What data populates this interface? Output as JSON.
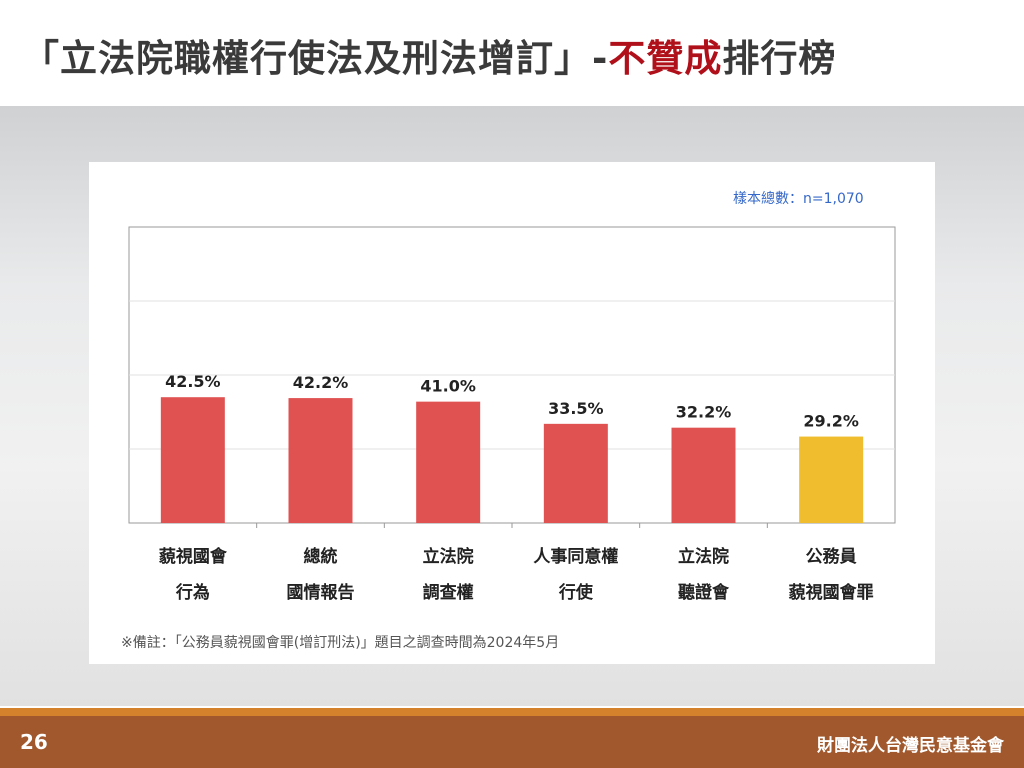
{
  "title": {
    "prefix": "「立法院職權行使法及刑法增訂」-",
    "highlight": "不贊成",
    "suffix": "排行榜"
  },
  "sample_label": "樣本總數：n=1,070",
  "note": "※備註：「公務員藐視國會罪(增訂刑法)」題目之調查時間為2024年5月",
  "footer": {
    "page_number": "26",
    "organization": "財團法人台灣民意基金會"
  },
  "colors": {
    "bar_default": "#e05151",
    "bar_highlight": "#f0bd2e",
    "title_highlight": "#b0101a",
    "footer": "#a0582c",
    "footer_stripe": "#d4822c"
  },
  "chart_data": {
    "type": "bar",
    "categories": [
      [
        "藐視國會",
        "行為"
      ],
      [
        "總統",
        "國情報告"
      ],
      [
        "立法院",
        "調查權"
      ],
      [
        "人事同意權",
        "行使"
      ],
      [
        "立法院",
        "聽證會"
      ],
      [
        "公務員",
        "藐視國會罪"
      ]
    ],
    "values": [
      42.5,
      42.2,
      41.0,
      33.5,
      32.2,
      29.2
    ],
    "value_labels": [
      "42.5%",
      "42.2%",
      "41.0%",
      "33.5%",
      "32.2%",
      "29.2%"
    ],
    "highlight_index": 5,
    "ylim": [
      0,
      100
    ],
    "grid": true,
    "unit": "%"
  }
}
